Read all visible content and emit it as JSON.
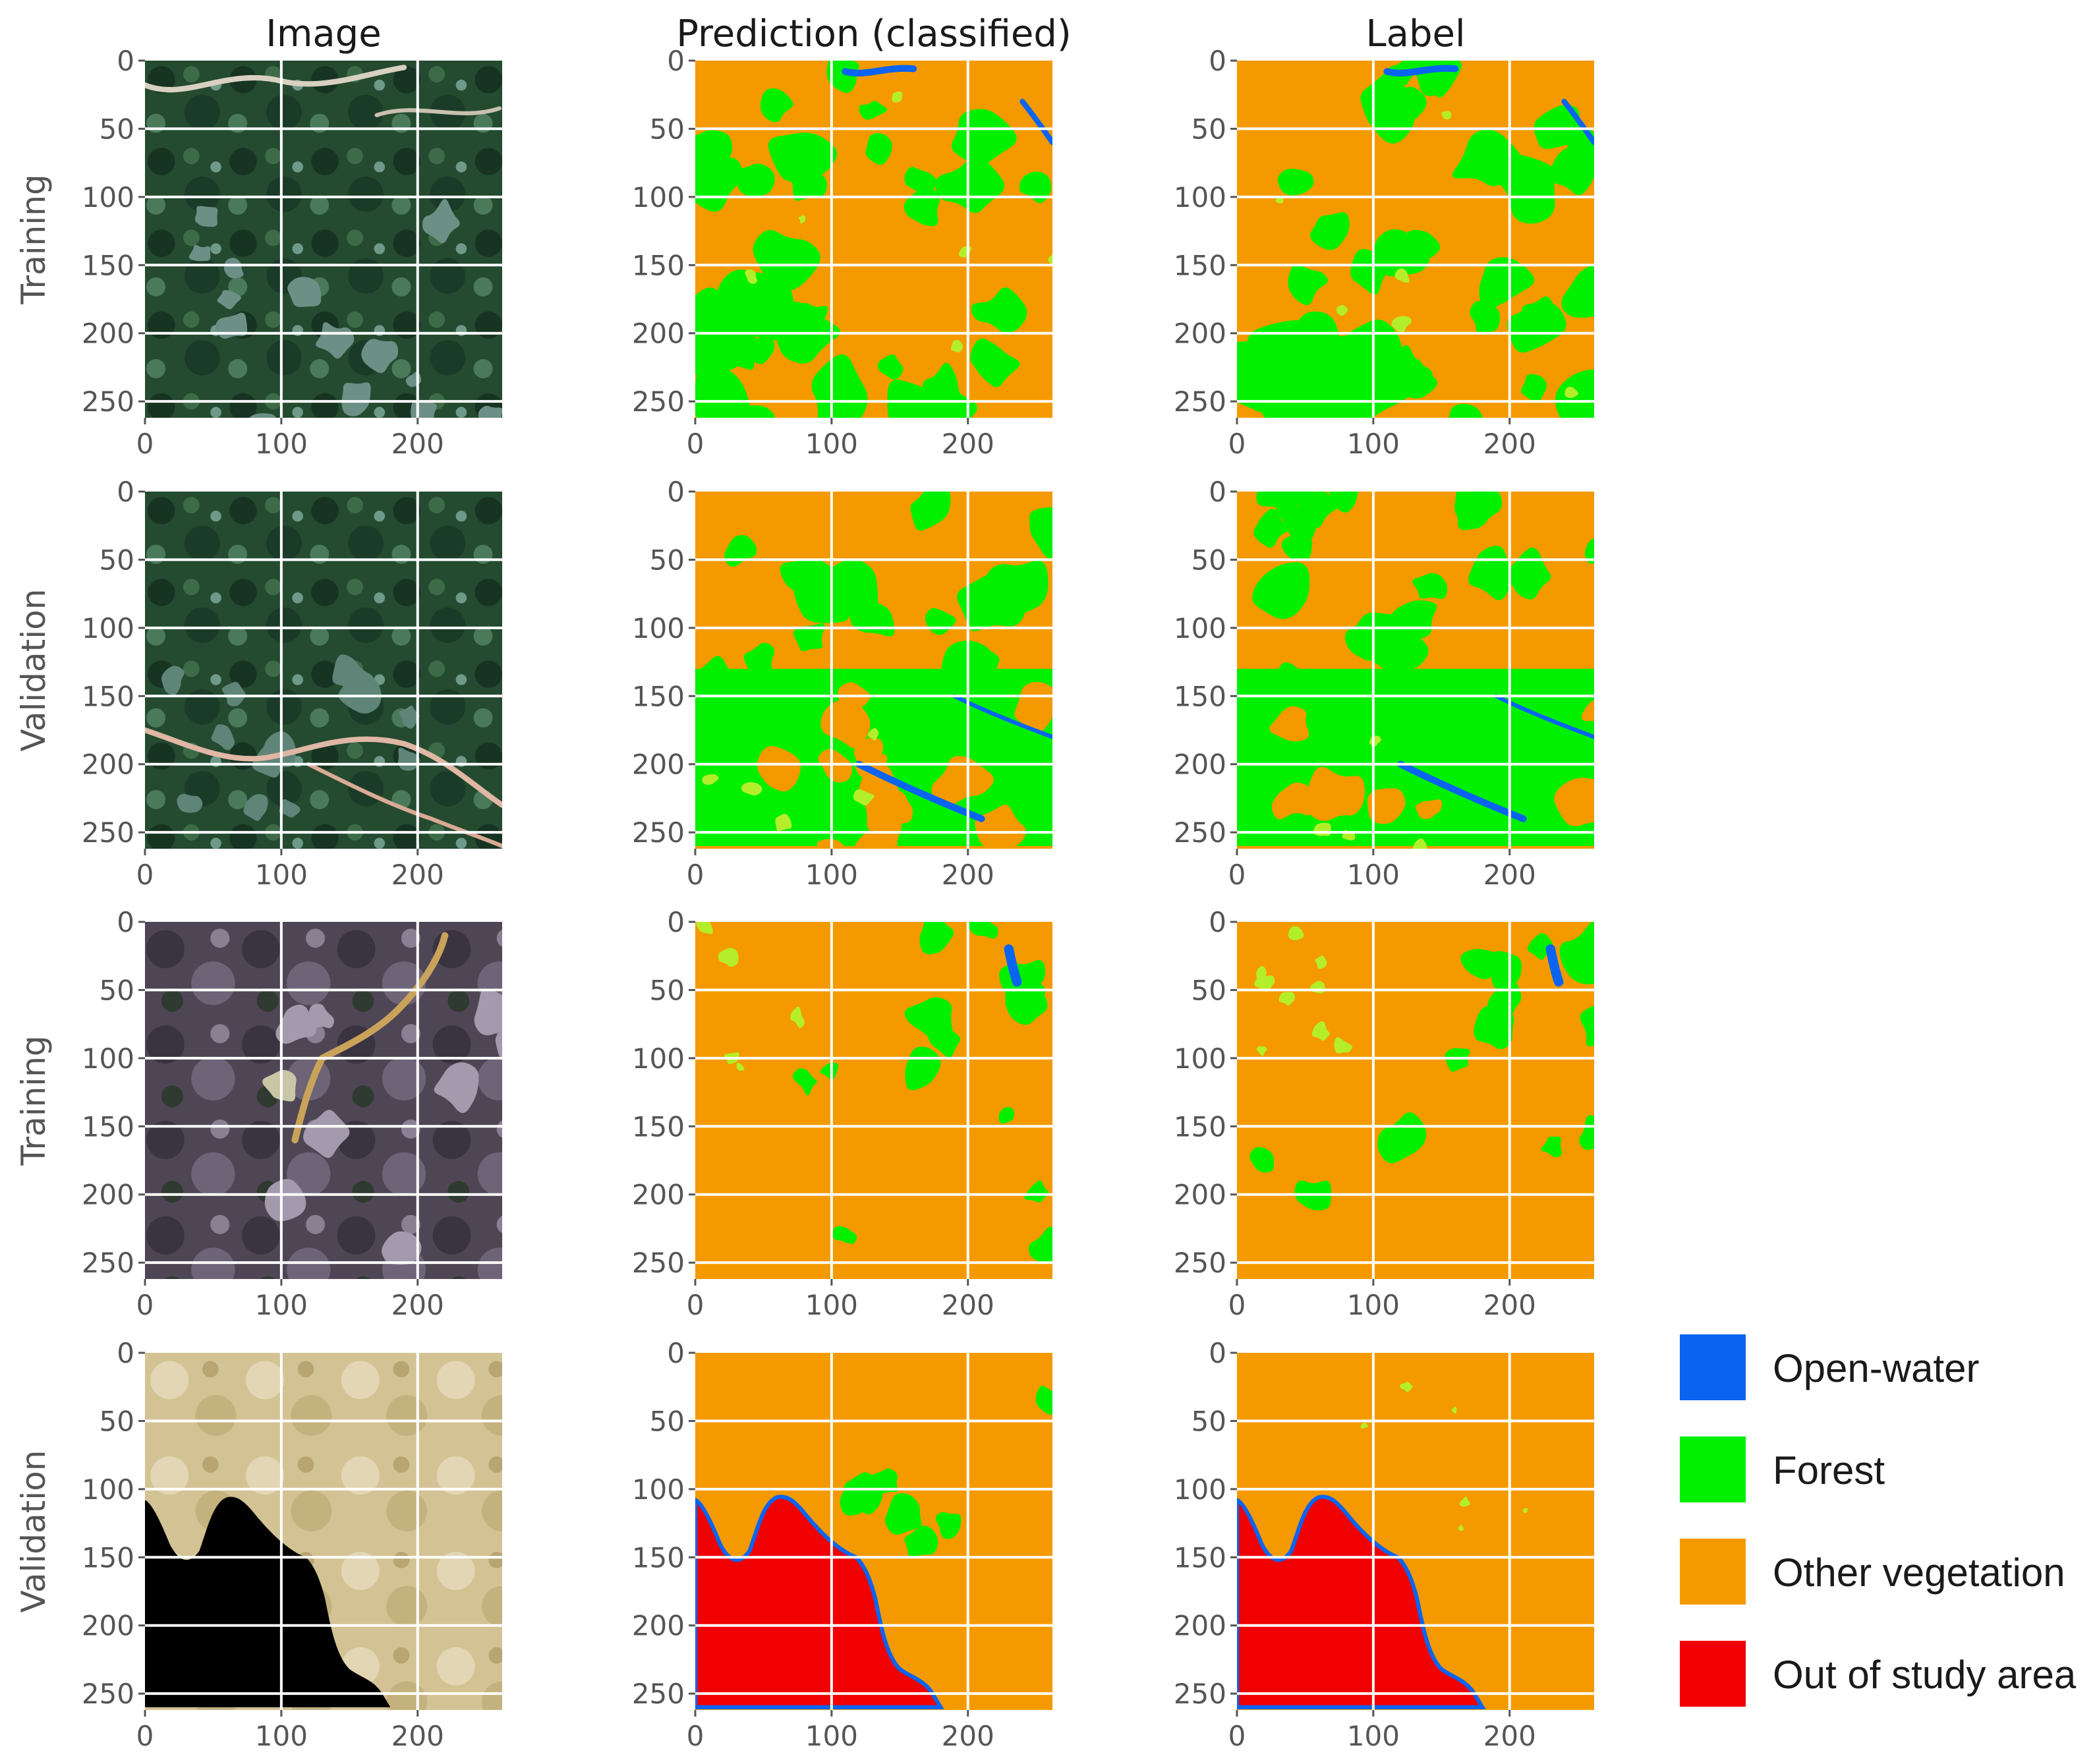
{
  "columns": [
    {
      "key": "image",
      "title": "Image"
    },
    {
      "key": "prediction",
      "title": "Prediction (classified)"
    },
    {
      "key": "label",
      "title": "Label"
    }
  ],
  "rows": [
    {
      "label": "Training",
      "scene": "forest"
    },
    {
      "label": "Validation",
      "scene": "forest-river"
    },
    {
      "label": "Training",
      "scene": "mountain"
    },
    {
      "label": "Validation",
      "scene": "boundary"
    }
  ],
  "axes": {
    "y_ticks": [
      "0",
      "50",
      "100",
      "150",
      "200",
      "250"
    ],
    "x_ticks": [
      "0",
      "100",
      "200"
    ]
  },
  "legend": [
    {
      "label": "Open-water",
      "color": "#0a64f0"
    },
    {
      "label": "Forest",
      "color": "#00f000"
    },
    {
      "label": "Other vegetation",
      "color": "#f49a00"
    },
    {
      "label": "Out of study area",
      "color": "#f00000"
    }
  ],
  "palette": {
    "light_green": "#b4ee2a",
    "forest_dark": "#1e3a26",
    "forest_mid": "#2f5a3a",
    "mountain": "#5b5160",
    "bare_soil": "#d7c79a"
  }
}
